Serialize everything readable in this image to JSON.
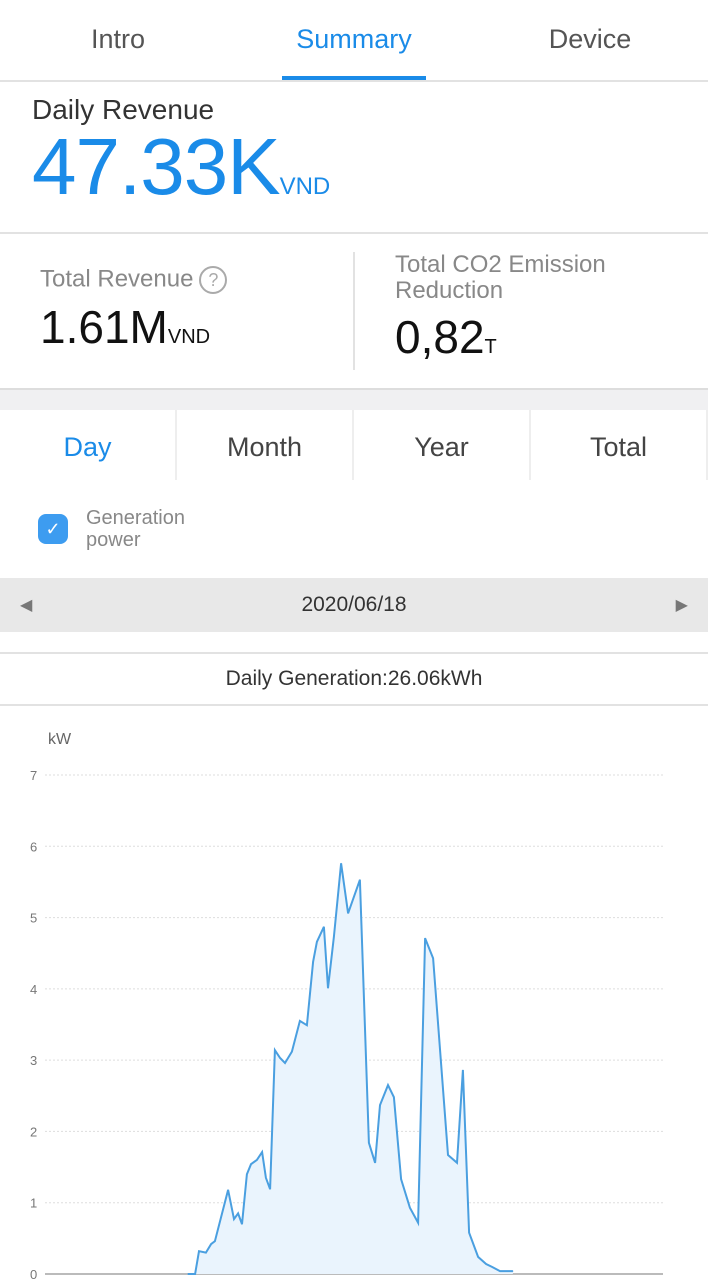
{
  "tabs": [
    {
      "label": "Intro"
    },
    {
      "label": "Summary",
      "active": true
    },
    {
      "label": "Device"
    }
  ],
  "daily": {
    "label": "Daily Revenue",
    "value": "47.33K",
    "unit": "VND"
  },
  "total_revenue": {
    "label": "Total Revenue",
    "help_icon": "question-circle-icon",
    "value": "1.61M",
    "unit": "VND"
  },
  "co2": {
    "label": "Total CO2 Emission Reduction",
    "value": "0,82",
    "unit": "T"
  },
  "periods": [
    {
      "label": "Day",
      "active": true
    },
    {
      "label": "Month"
    },
    {
      "label": "Year"
    },
    {
      "label": "Total"
    }
  ],
  "legend": {
    "label": "Generation power",
    "checked": true
  },
  "date": {
    "value": "2020/06/18",
    "prev_icon": "triangle-left-icon",
    "next_icon": "triangle-right-icon"
  },
  "daily_generation": "Daily Generation:26.06kWh",
  "colors": {
    "accent": "#1a8be8",
    "line": "#4a9fe0",
    "fill": "#eaf4fd"
  },
  "chart_data": {
    "type": "area",
    "ylabel": "kW",
    "ylim": [
      0,
      7
    ],
    "yticks": [
      "0",
      "1",
      "2",
      "3",
      "4",
      "5",
      "6",
      "7"
    ],
    "xlim": [
      0,
      24
    ],
    "grid": true,
    "x": [
      5.55,
      5.83,
      5.98,
      6.25,
      6.45,
      6.6,
      7.11,
      7.34,
      7.5,
      7.65,
      7.84,
      8.0,
      8.23,
      8.43,
      8.58,
      8.74,
      8.93,
      9.13,
      9.32,
      9.59,
      9.9,
      10.17,
      10.41,
      10.56,
      10.83,
      10.99,
      11.22,
      11.5,
      11.77,
      12.23,
      12.58,
      12.82,
      13.01,
      13.32,
      13.55,
      13.83,
      14.17,
      14.49,
      14.76,
      15.07,
      15.65,
      16.0,
      16.23,
      16.47,
      16.82,
      17.13,
      17.36,
      17.67,
      18.17
    ],
    "y": [
      0,
      0,
      0.32,
      0.3,
      0.42,
      0.46,
      1.18,
      0.77,
      0.85,
      0.7,
      1.4,
      1.54,
      1.6,
      1.71,
      1.35,
      1.19,
      3.14,
      3.03,
      2.96,
      3.12,
      3.55,
      3.49,
      4.38,
      4.66,
      4.87,
      4.01,
      4.73,
      5.76,
      5.06,
      5.53,
      1.84,
      1.56,
      2.37,
      2.65,
      2.48,
      1.33,
      0.93,
      0.72,
      4.71,
      4.43,
      1.67,
      1.56,
      2.86,
      0.58,
      0.24,
      0.14,
      0.1,
      0.04,
      0.04
    ]
  }
}
